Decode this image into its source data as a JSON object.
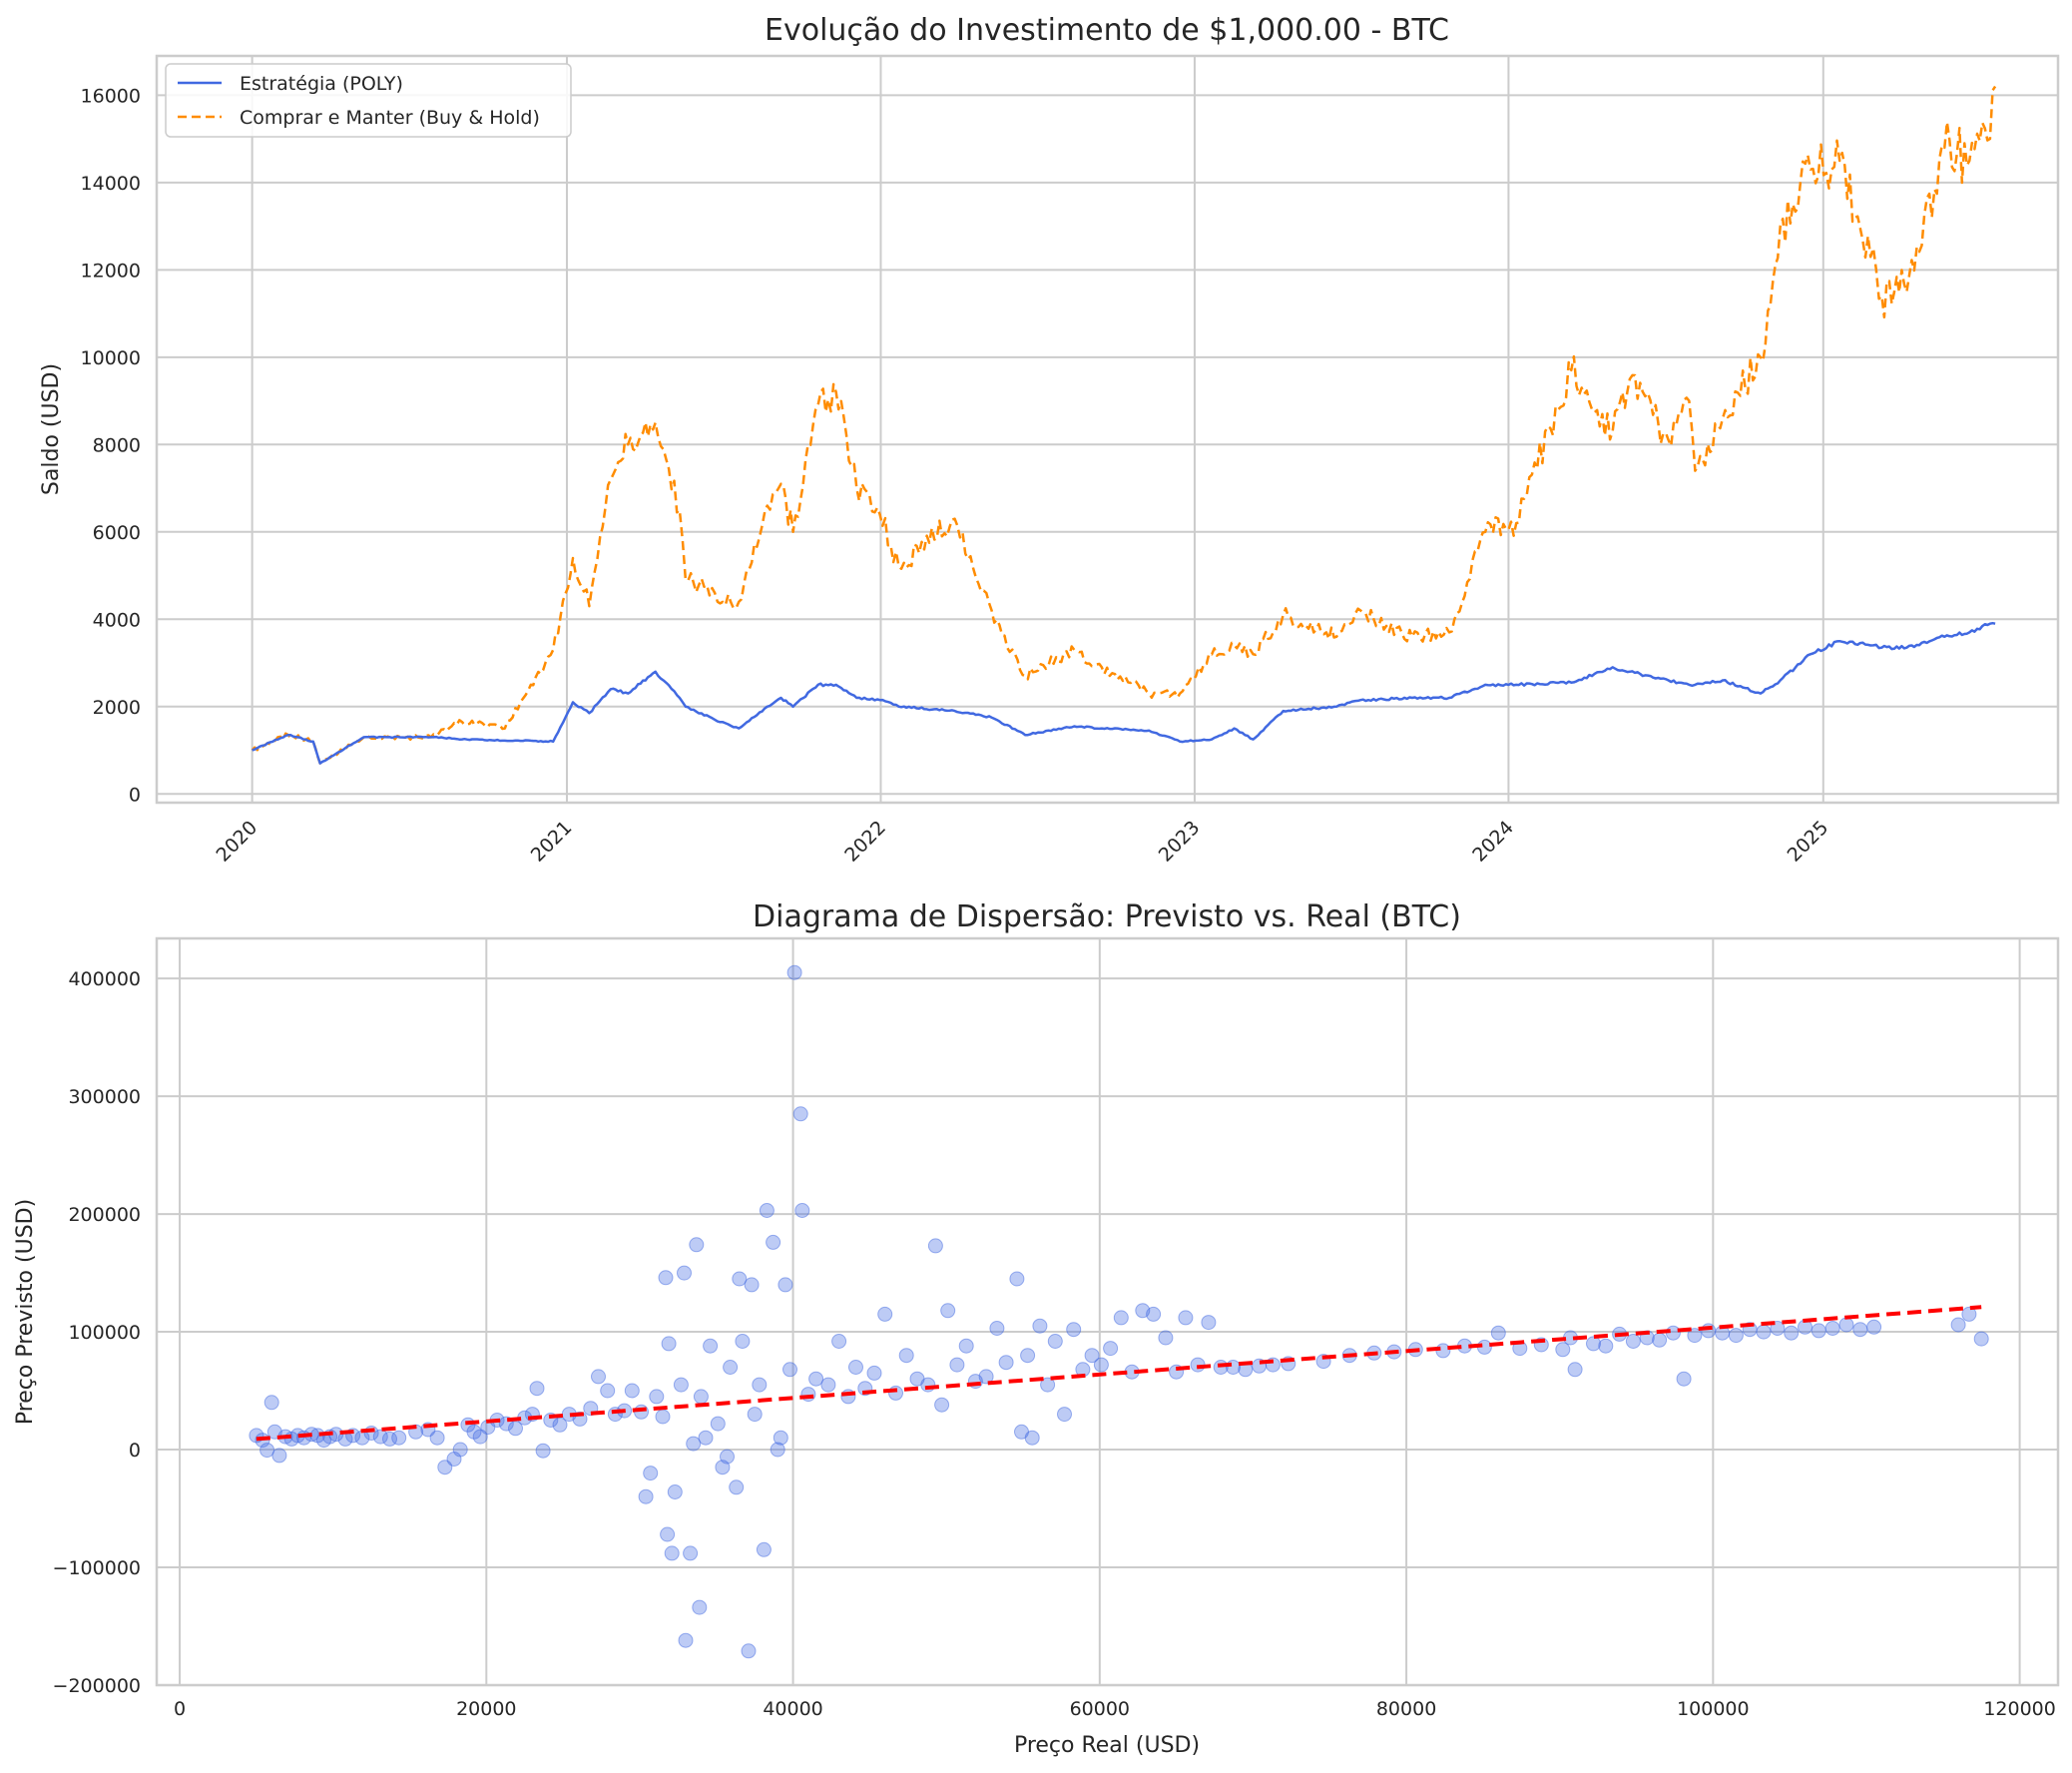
{
  "chart_data": [
    {
      "type": "line",
      "title": "Evolução do Investimento de $1,000.00 - BTC",
      "xlabel": "",
      "ylabel": "Saldo (USD)",
      "xlim": [
        "2019-09-12",
        "2025-10-01"
      ],
      "ylim": [
        -200,
        16900
      ],
      "x_ticks": [
        "2020",
        "2021",
        "2022",
        "2023",
        "2024",
        "2025"
      ],
      "y_ticks": [
        0,
        2000,
        4000,
        6000,
        8000,
        10000,
        12000,
        14000,
        16000
      ],
      "grid": true,
      "legend_position": "upper-left",
      "x": [
        "2020-01-01",
        "2020-02-12",
        "2020-03-12",
        "2020-03-20",
        "2020-05-10",
        "2020-07-27",
        "2020-09-01",
        "2020-10-21",
        "2020-11-20",
        "2020-12-16",
        "2021-01-08",
        "2021-01-27",
        "2021-02-21",
        "2021-03-13",
        "2021-04-14",
        "2021-05-12",
        "2021-05-19",
        "2021-06-22",
        "2021-07-20",
        "2021-08-22",
        "2021-09-07",
        "2021-09-21",
        "2021-10-20",
        "2021-11-10",
        "2021-12-04",
        "2021-12-31",
        "2022-01-22",
        "2022-03-28",
        "2022-05-10",
        "2022-06-18",
        "2022-08-14",
        "2022-09-15",
        "2022-11-09",
        "2022-12-15",
        "2023-01-21",
        "2023-02-16",
        "2023-03-10",
        "2023-04-14",
        "2023-06-15",
        "2023-07-13",
        "2023-09-11",
        "2023-10-24",
        "2023-12-05",
        "2024-01-10",
        "2024-03-14",
        "2024-05-01",
        "2024-05-21",
        "2024-07-05",
        "2024-07-29",
        "2024-08-05",
        "2024-09-06",
        "2024-10-20",
        "2024-11-12",
        "2024-12-17",
        "2025-01-20",
        "2025-02-25",
        "2025-03-10",
        "2025-04-08",
        "2025-05-22",
        "2025-06-20",
        "2025-07-14",
        "2025-07-20"
      ],
      "series": [
        {
          "name": "Estratégia (POLY)",
          "color": "#4169e1",
          "style": "solid",
          "values": [
            1000,
            1350,
            1200,
            700,
            1300,
            1300,
            1250,
            1220,
            1220,
            1200,
            2100,
            1850,
            2400,
            2300,
            2800,
            2200,
            2000,
            1700,
            1500,
            2000,
            2200,
            2000,
            2500,
            2500,
            2200,
            2150,
            2000,
            1900,
            1750,
            1350,
            1550,
            1500,
            1450,
            1200,
            1250,
            1500,
            1250,
            1900,
            2000,
            2150,
            2200,
            2200,
            2500,
            2500,
            2550,
            2900,
            2800,
            2600,
            2500,
            2500,
            2600,
            2300,
            2600,
            3200,
            3500,
            3400,
            3350,
            3350,
            3600,
            3700,
            3900,
            3900
          ]
        },
        {
          "name": "Comprar e Manter (Buy & Hold)",
          "color": "#ff8c00",
          "style": "dashed",
          "values": [
            1000,
            1350,
            1200,
            700,
            1300,
            1300,
            1650,
            1500,
            2500,
            3300,
            5400,
            4300,
            7200,
            8000,
            8500,
            6500,
            4900,
            4600,
            4400,
            6600,
            7100,
            6000,
            8900,
            9200,
            7000,
            6400,
            5200,
            6300,
            4200,
            2700,
            3300,
            2900,
            2300,
            2300,
            3200,
            3400,
            3200,
            4100,
            3600,
            4200,
            3600,
            3700,
            6000,
            6200,
            9700,
            8300,
            9500,
            8100,
            9000,
            7400,
            8600,
            10000,
            13000,
            14300,
            14500,
            12300,
            11400,
            11500,
            14800,
            14500,
            15000,
            16200
          ]
        }
      ]
    },
    {
      "type": "scatter",
      "title": "Diagrama de Dispersão: Previsto vs. Real (BTC)",
      "xlabel": "Preço Real (USD)",
      "ylabel": "Preço Previsto (USD)",
      "xlim": [
        -1500,
        122500
      ],
      "ylim": [
        -200000,
        434000
      ],
      "x_ticks": [
        0,
        20000,
        40000,
        60000,
        80000,
        100000,
        120000
      ],
      "y_ticks": [
        -200000,
        -100000,
        0,
        100000,
        200000,
        300000,
        400000
      ],
      "y_tick_labels": [
        "−200000",
        "−100000",
        "0",
        "100000",
        "200000",
        "300000",
        "400000"
      ],
      "grid": true,
      "point_color": "#4169e1",
      "points": [
        [
          5000,
          12000
        ],
        [
          5400,
          8000
        ],
        [
          5700,
          -500
        ],
        [
          6000,
          40000
        ],
        [
          6200,
          15000
        ],
        [
          6500,
          -5000
        ],
        [
          6900,
          11000
        ],
        [
          7300,
          9000
        ],
        [
          7700,
          12000
        ],
        [
          8100,
          10000
        ],
        [
          8600,
          13000
        ],
        [
          9000,
          12000
        ],
        [
          9400,
          8000
        ],
        [
          9800,
          11000
        ],
        [
          10200,
          13000
        ],
        [
          10800,
          9000
        ],
        [
          11300,
          12000
        ],
        [
          11900,
          10000
        ],
        [
          12500,
          14000
        ],
        [
          13100,
          11000
        ],
        [
          13700,
          9000
        ],
        [
          14300,
          10000
        ],
        [
          15400,
          15000
        ],
        [
          16200,
          17000
        ],
        [
          16800,
          10000
        ],
        [
          17300,
          -15000
        ],
        [
          17900,
          -8000
        ],
        [
          18300,
          0
        ],
        [
          18800,
          21000
        ],
        [
          19200,
          15000
        ],
        [
          19600,
          11000
        ],
        [
          20100,
          19000
        ],
        [
          20700,
          25000
        ],
        [
          21300,
          22000
        ],
        [
          21900,
          18000
        ],
        [
          22500,
          27000
        ],
        [
          23000,
          30000
        ],
        [
          23300,
          52000
        ],
        [
          23700,
          -1000
        ],
        [
          24200,
          25000
        ],
        [
          24800,
          21000
        ],
        [
          25400,
          30000
        ],
        [
          26100,
          26000
        ],
        [
          26800,
          35000
        ],
        [
          27300,
          62000
        ],
        [
          27900,
          50000
        ],
        [
          28400,
          30000
        ],
        [
          29000,
          33000
        ],
        [
          29500,
          50000
        ],
        [
          30100,
          32000
        ],
        [
          30400,
          -40000
        ],
        [
          30700,
          -20000
        ],
        [
          31100,
          45000
        ],
        [
          31500,
          28000
        ],
        [
          31700,
          146000
        ],
        [
          31800,
          -72000
        ],
        [
          31900,
          90000
        ],
        [
          32100,
          -88000
        ],
        [
          32300,
          -36000
        ],
        [
          32700,
          55000
        ],
        [
          32900,
          150000
        ],
        [
          33000,
          -162000
        ],
        [
          33300,
          -88000
        ],
        [
          33500,
          5000
        ],
        [
          33700,
          174000
        ],
        [
          33900,
          -134000
        ],
        [
          34000,
          45000
        ],
        [
          34300,
          10000
        ],
        [
          34600,
          88000
        ],
        [
          35100,
          22000
        ],
        [
          35400,
          -15000
        ],
        [
          35700,
          -6000
        ],
        [
          35900,
          70000
        ],
        [
          36300,
          -32000
        ],
        [
          36500,
          145000
        ],
        [
          36700,
          92000
        ],
        [
          37100,
          -171000
        ],
        [
          37300,
          140000
        ],
        [
          37500,
          30000
        ],
        [
          37800,
          55000
        ],
        [
          38100,
          -85000
        ],
        [
          38300,
          203000
        ],
        [
          38700,
          176000
        ],
        [
          39000,
          0
        ],
        [
          39200,
          10000
        ],
        [
          39500,
          140000
        ],
        [
          39800,
          68000
        ],
        [
          40100,
          405000
        ],
        [
          40500,
          285000
        ],
        [
          40600,
          203000
        ],
        [
          41000,
          47000
        ],
        [
          41500,
          60000
        ],
        [
          42300,
          55000
        ],
        [
          43000,
          92000
        ],
        [
          43600,
          45000
        ],
        [
          44100,
          70000
        ],
        [
          44700,
          52000
        ],
        [
          45300,
          65000
        ],
        [
          46000,
          115000
        ],
        [
          46700,
          48000
        ],
        [
          47400,
          80000
        ],
        [
          48100,
          60000
        ],
        [
          48800,
          55000
        ],
        [
          49300,
          173000
        ],
        [
          49700,
          38000
        ],
        [
          50100,
          118000
        ],
        [
          50700,
          72000
        ],
        [
          51300,
          88000
        ],
        [
          51900,
          58000
        ],
        [
          52600,
          62000
        ],
        [
          53300,
          103000
        ],
        [
          53900,
          74000
        ],
        [
          54600,
          145000
        ],
        [
          54900,
          15000
        ],
        [
          55300,
          80000
        ],
        [
          55600,
          10000
        ],
        [
          56100,
          105000
        ],
        [
          56600,
          55000
        ],
        [
          57100,
          92000
        ],
        [
          57700,
          30000
        ],
        [
          58300,
          102000
        ],
        [
          58900,
          68000
        ],
        [
          59500,
          80000
        ],
        [
          60100,
          72000
        ],
        [
          60700,
          86000
        ],
        [
          61400,
          112000
        ],
        [
          62100,
          66000
        ],
        [
          62800,
          118000
        ],
        [
          63500,
          115000
        ],
        [
          64300,
          95000
        ],
        [
          65000,
          66000
        ],
        [
          65600,
          112000
        ],
        [
          66400,
          72000
        ],
        [
          67100,
          108000
        ],
        [
          67900,
          70000
        ],
        [
          68700,
          70000
        ],
        [
          69500,
          68000
        ],
        [
          70400,
          71000
        ],
        [
          71300,
          72000
        ],
        [
          72300,
          73000
        ],
        [
          74600,
          75000
        ],
        [
          76300,
          80000
        ],
        [
          77900,
          82000
        ],
        [
          79200,
          83000
        ],
        [
          80600,
          85000
        ],
        [
          82400,
          84000
        ],
        [
          83800,
          88000
        ],
        [
          85100,
          87000
        ],
        [
          86000,
          99000
        ],
        [
          87400,
          86000
        ],
        [
          88800,
          89000
        ],
        [
          90200,
          85000
        ],
        [
          90700,
          95000
        ],
        [
          91000,
          68000
        ],
        [
          92200,
          90000
        ],
        [
          93000,
          88000
        ],
        [
          93900,
          98000
        ],
        [
          94800,
          92000
        ],
        [
          95700,
          95000
        ],
        [
          96500,
          93000
        ],
        [
          97400,
          99000
        ],
        [
          98100,
          60000
        ],
        [
          98800,
          97000
        ],
        [
          99700,
          101000
        ],
        [
          100600,
          99000
        ],
        [
          101500,
          97000
        ],
        [
          102400,
          102000
        ],
        [
          103300,
          100000
        ],
        [
          104200,
          103000
        ],
        [
          105100,
          99000
        ],
        [
          106000,
          104000
        ],
        [
          106900,
          101000
        ],
        [
          107800,
          103000
        ],
        [
          108700,
          106000
        ],
        [
          109600,
          102000
        ],
        [
          110500,
          104000
        ],
        [
          116000,
          106000
        ],
        [
          116700,
          115000
        ],
        [
          117500,
          94000
        ]
      ],
      "trend_line": {
        "color": "#ff0000",
        "style": "dashed",
        "x": [
          5000,
          117500
        ],
        "y": [
          9000,
          121000
        ]
      }
    }
  ]
}
